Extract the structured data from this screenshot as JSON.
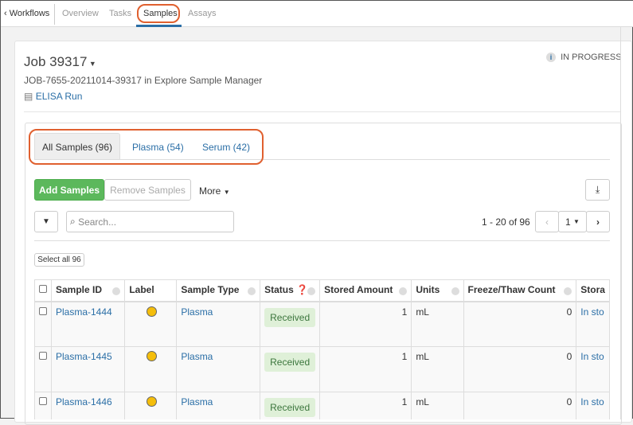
{
  "nav": {
    "back": "Workflows",
    "tabs": [
      "Overview",
      "Tasks",
      "Samples",
      "Assays"
    ],
    "active": "Samples"
  },
  "job": {
    "title": "Job 39317",
    "subtitle": "JOB-7655-20211014-39317 in Explore Sample Manager",
    "protocol": "ELISA Run",
    "status": "IN PROGRESS"
  },
  "sample_tabs": [
    "All Samples (96)",
    "Plasma (54)",
    "Serum (42)"
  ],
  "toolbar": {
    "add": "Add Samples",
    "remove": "Remove Samples",
    "more": "More",
    "search_placeholder": "Search...",
    "paging": "1 - 20 of 96",
    "page": "1",
    "select_all": "Select all 96"
  },
  "table": {
    "columns": [
      "Sample ID",
      "Label",
      "Sample Type",
      "Status",
      "Stored Amount",
      "Units",
      "Freeze/Thaw Count",
      "Stora"
    ],
    "rows": [
      {
        "id": "Plasma-1444",
        "type": "Plasma",
        "status": "Received",
        "amount": "1",
        "units": "mL",
        "ft": "0",
        "storage": "In sto"
      },
      {
        "id": "Plasma-1445",
        "type": "Plasma",
        "status": "Received",
        "amount": "1",
        "units": "mL",
        "ft": "0",
        "storage": "In sto"
      },
      {
        "id": "Plasma-1446",
        "type": "Plasma",
        "status": "Received",
        "amount": "1",
        "units": "mL",
        "ft": "0",
        "storage": "In sto"
      }
    ]
  },
  "colors": {
    "accent": "#2a6ea6",
    "success": "#5cb85c",
    "highlight": "#e0602f",
    "label_dot": "#f5be0b"
  }
}
